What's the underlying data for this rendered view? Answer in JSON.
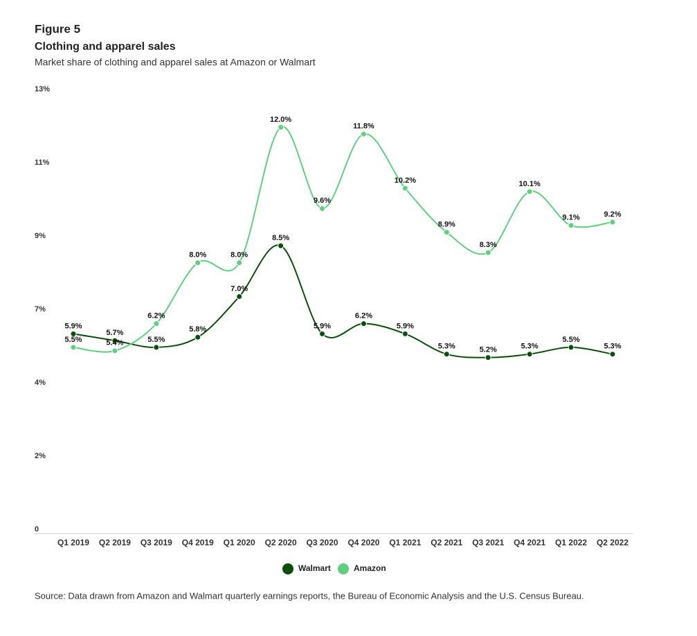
{
  "chart_data": {
    "type": "line",
    "label": "Figure 5",
    "title": "Clothing and apparel sales",
    "subtitle": "Market share of clothing and apparel sales at Amazon or Walmart",
    "source": "Source: Data drawn from Amazon and Walmart quarterly earnings reports, the Bureau of Economic Analysis and the U.S. Census Bureau.",
    "categories": [
      "Q1 2019",
      "Q2 2019",
      "Q3 2019",
      "Q4 2019",
      "Q1 2020",
      "Q2 2020",
      "Q3 2020",
      "Q4 2020",
      "Q1 2021",
      "Q2 2021",
      "Q3 2021",
      "Q4 2021",
      "Q1 2022",
      "Q2 2022"
    ],
    "series": [
      {
        "name": "Walmart",
        "color": "#0b4d0b",
        "values": [
          5.9,
          5.7,
          5.5,
          5.8,
          7.0,
          8.5,
          5.9,
          6.2,
          5.9,
          5.3,
          5.2,
          5.3,
          5.5,
          5.3
        ],
        "value_labels": [
          "5.9%",
          "5.7%",
          "5.5%",
          "5.8%",
          "7.0%",
          "8.5%",
          "5.9%",
          "6.2%",
          "5.9%",
          "5.3%",
          "5.2%",
          "5.3%",
          "5.5%",
          "5.3%"
        ]
      },
      {
        "name": "Amazon",
        "color": "#5fcf80",
        "values": [
          5.5,
          5.4,
          6.2,
          8.0,
          8.0,
          12.0,
          9.6,
          11.8,
          10.2,
          8.9,
          8.3,
          10.1,
          9.1,
          9.2
        ],
        "value_labels": [
          "5.5%",
          "5.4%",
          "6.2%",
          "8.0%",
          "8.0%",
          "12.0%",
          "9.6%",
          "11.8%",
          "10.2%",
          "8.9%",
          "8.3%",
          "10.1%",
          "9.1%",
          "9.2%"
        ]
      }
    ],
    "ylim": [
      0,
      13
    ],
    "yticks": [
      0,
      {
        "value": 2.1667,
        "label": "2%"
      },
      {
        "value": 4.3333,
        "label": "4%"
      },
      {
        "value": 6.5,
        "label": "7%"
      },
      {
        "value": 8.6667,
        "label": "9%"
      },
      {
        "value": 10.8333,
        "label": "11%"
      },
      {
        "value": 13,
        "label": "13%"
      }
    ]
  }
}
